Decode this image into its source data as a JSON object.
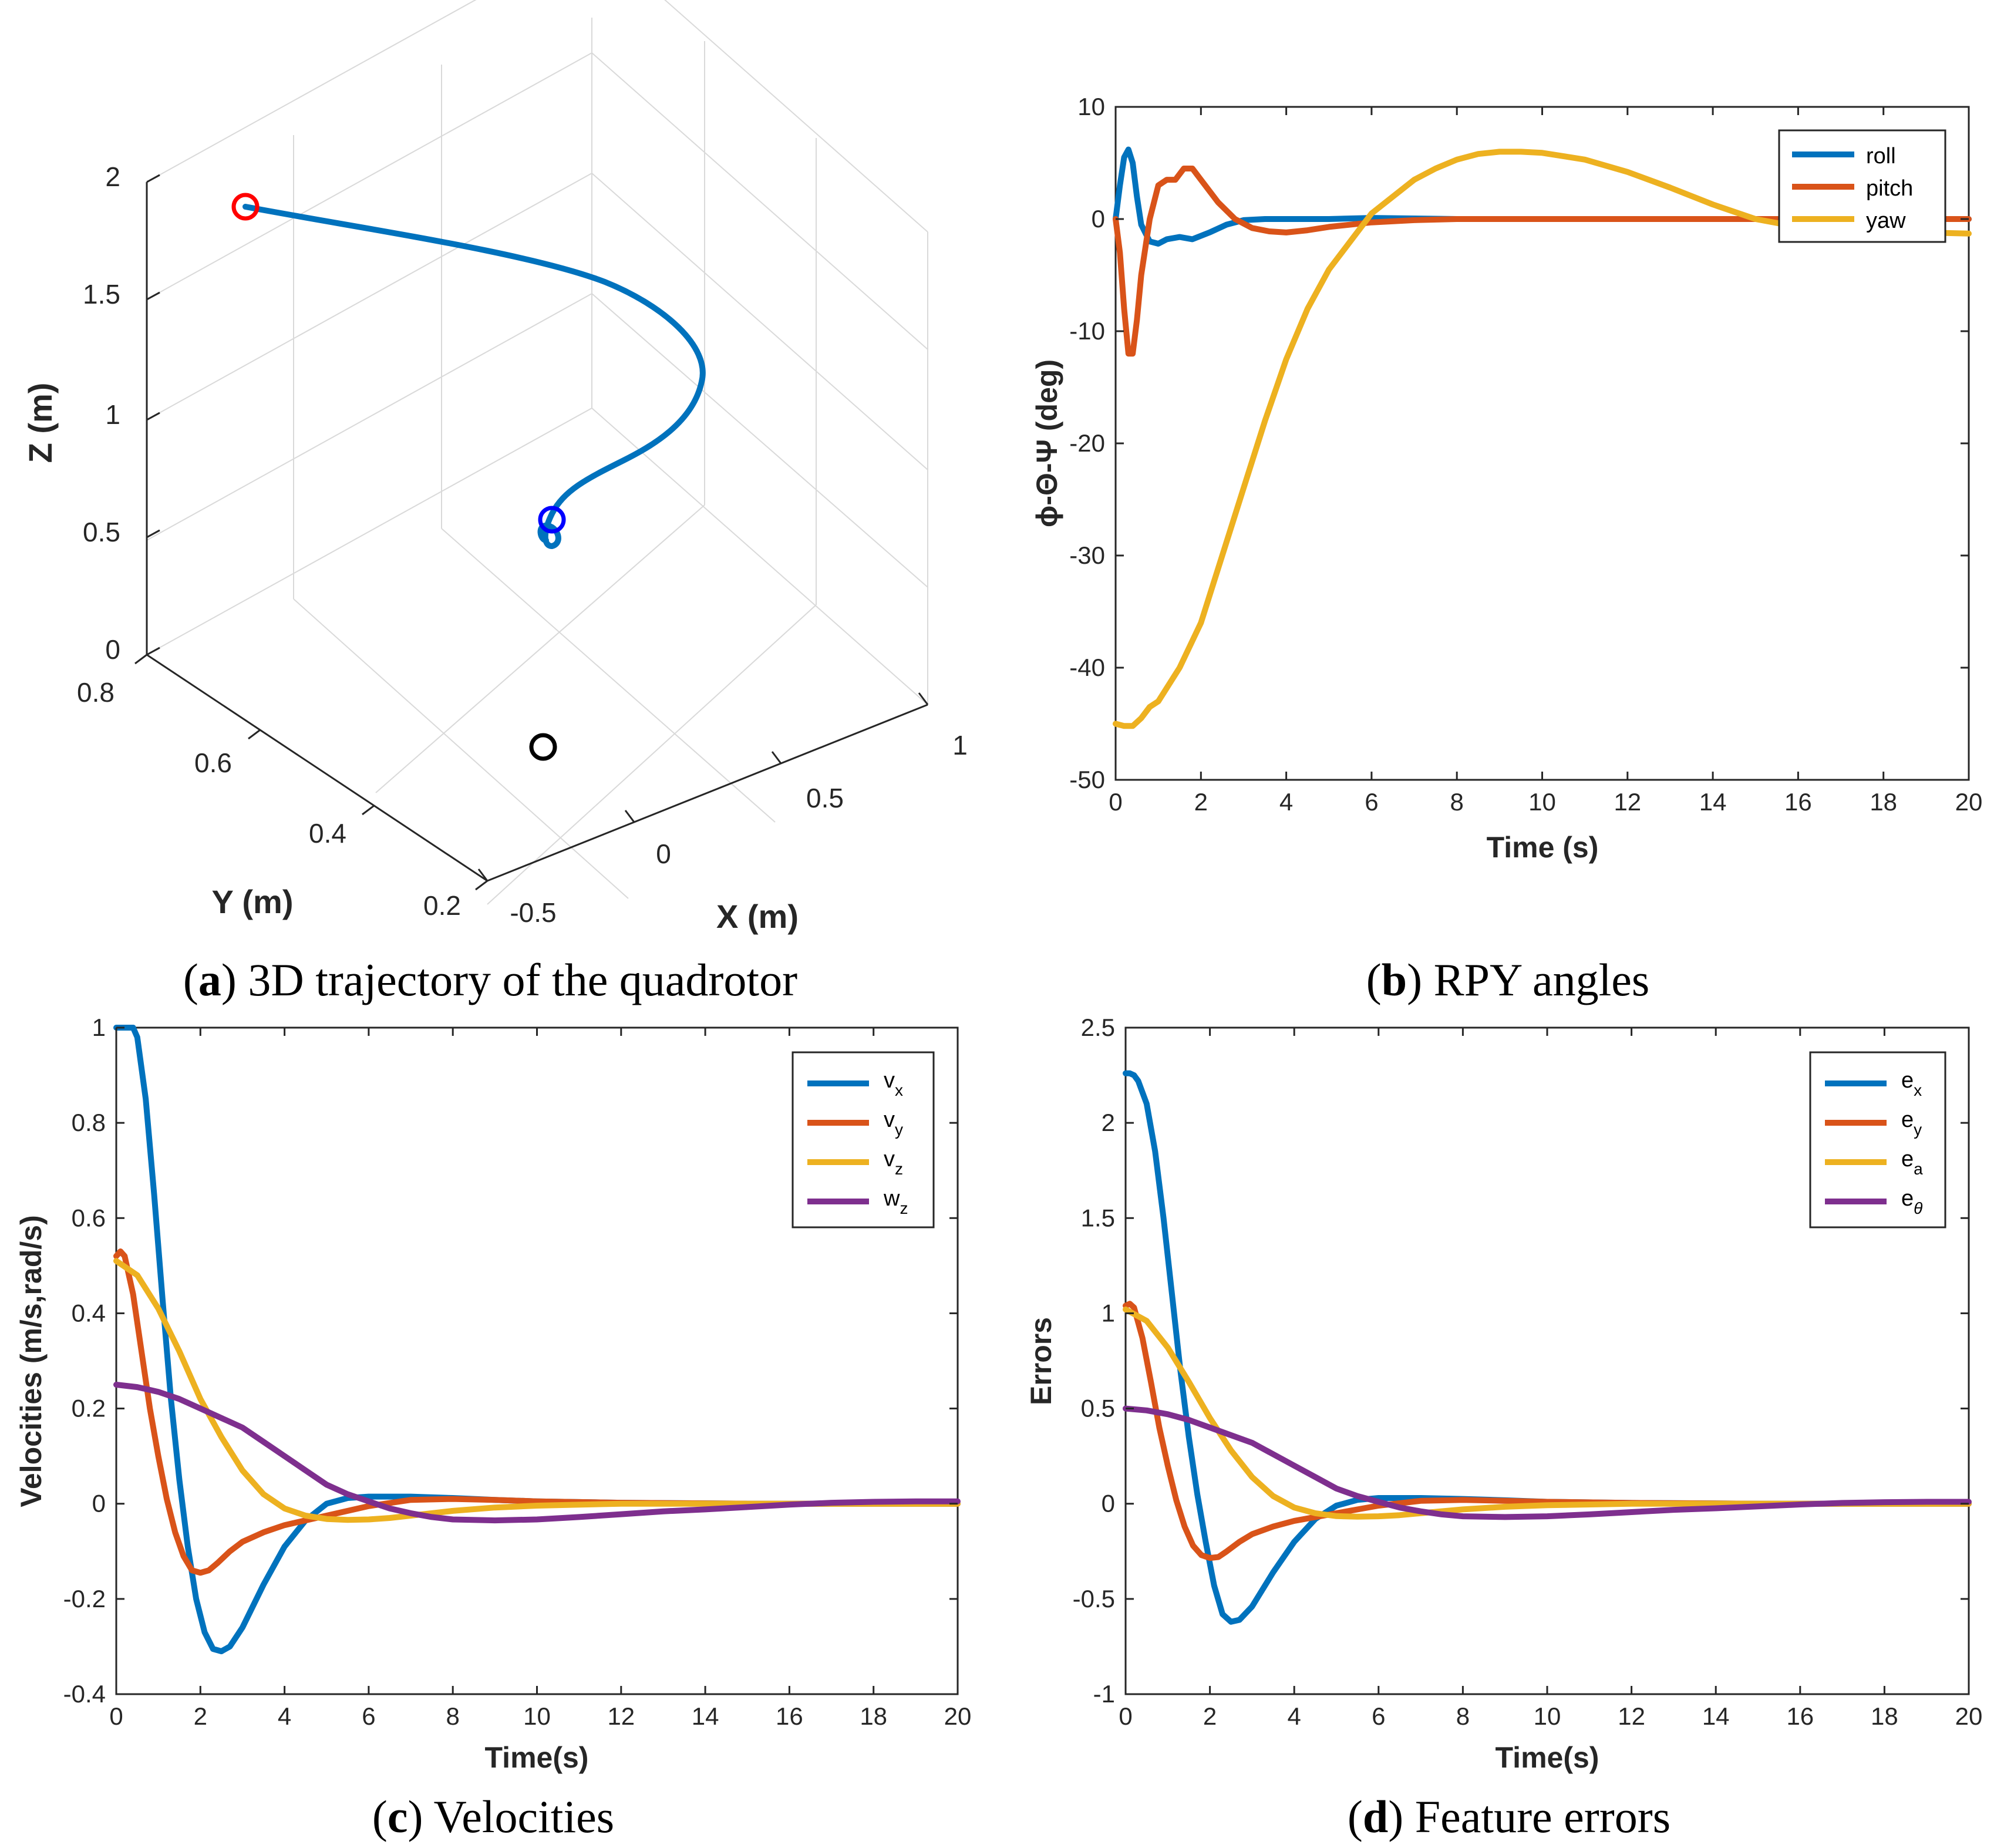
{
  "figure": {
    "captions": [
      {
        "letter": "a",
        "text": " 3D trajectory of the quadrotor"
      },
      {
        "letter": "b",
        "text": " RPY angles"
      },
      {
        "letter": "c",
        "text": " Velocities"
      },
      {
        "letter": "d",
        "text": " Feature errors"
      }
    ]
  },
  "chart_data": [
    {
      "id": "a",
      "type": "line3d",
      "title": "",
      "xlabel": "X (m)",
      "ylabel": "Y (m)",
      "zlabel": "Z (m)",
      "xlim": [
        -0.5,
        1
      ],
      "ylim": [
        0.2,
        0.8
      ],
      "zlim": [
        0,
        2
      ],
      "x_ticks": [
        "-0.5",
        "0",
        "0.5",
        "1"
      ],
      "y_ticks": [
        "0.2",
        "0.4",
        "0.6",
        "0.8"
      ],
      "z_ticks": [
        "0",
        "0.5",
        "1",
        "1.5",
        "2"
      ],
      "grid": true,
      "color": "#0072BD",
      "markers": [
        {
          "name": "start",
          "color": "#FF0000"
        },
        {
          "name": "end",
          "color": "#0000FF"
        },
        {
          "name": "ground-projection",
          "color": "#000000"
        }
      ]
    },
    {
      "id": "b",
      "type": "line",
      "title": "",
      "xlabel": "Time (s)",
      "ylabel": "ϕ-Θ-Ψ (deg)",
      "xlim": [
        0,
        20
      ],
      "ylim": [
        -50,
        10
      ],
      "x_ticks": [
        "0",
        "2",
        "4",
        "6",
        "8",
        "10",
        "12",
        "14",
        "16",
        "18",
        "20"
      ],
      "y_ticks": [
        "10",
        "0",
        "-10",
        "-20",
        "-30",
        "-40",
        "-50"
      ],
      "legend": "top-right",
      "series": [
        {
          "name": "roll",
          "color": "#0072BD",
          "x": [
            0,
            0.1,
            0.2,
            0.3,
            0.4,
            0.5,
            0.6,
            0.8,
            1.0,
            1.2,
            1.5,
            1.8,
            2.2,
            2.6,
            3.0,
            3.5,
            4,
            5,
            6,
            8,
            10,
            15,
            20
          ],
          "y": [
            0,
            3,
            5.5,
            6.2,
            5,
            2,
            -0.5,
            -2,
            -2.2,
            -1.8,
            -1.6,
            -1.8,
            -1.2,
            -0.5,
            -0.1,
            0,
            0,
            0,
            0.1,
            0,
            0,
            0,
            0
          ]
        },
        {
          "name": "pitch",
          "color": "#D95319",
          "x": [
            0,
            0.1,
            0.2,
            0.3,
            0.4,
            0.5,
            0.6,
            0.8,
            1.0,
            1.2,
            1.4,
            1.6,
            1.8,
            2.0,
            2.4,
            2.8,
            3.2,
            3.6,
            4.0,
            4.5,
            5,
            6,
            7,
            8,
            10,
            15,
            20
          ],
          "y": [
            0,
            -3,
            -8,
            -12,
            -12,
            -9,
            -5,
            0,
            3,
            3.5,
            3.5,
            4.5,
            4.5,
            3.5,
            1.5,
            0,
            -0.8,
            -1.1,
            -1.2,
            -1,
            -0.7,
            -0.3,
            -0.1,
            0,
            0,
            0,
            0
          ]
        },
        {
          "name": "yaw",
          "color": "#EDB120",
          "x": [
            0,
            0.2,
            0.4,
            0.6,
            0.8,
            1.0,
            1.5,
            2.0,
            2.5,
            3,
            3.5,
            4,
            4.5,
            5,
            5.5,
            6,
            6.5,
            7,
            7.5,
            8,
            8.5,
            9,
            9.5,
            10,
            11,
            12,
            13,
            14,
            15,
            16,
            17,
            18,
            19,
            20
          ],
          "y": [
            -45,
            -45.2,
            -45.2,
            -44.5,
            -43.5,
            -43,
            -40,
            -36,
            -30,
            -24,
            -18,
            -12.5,
            -8,
            -4.5,
            -2,
            0.5,
            2,
            3.5,
            4.5,
            5.3,
            5.8,
            6,
            6,
            5.9,
            5.3,
            4.2,
            2.8,
            1.3,
            0,
            -0.7,
            -1,
            -1.1,
            -1.2,
            -1.3
          ]
        }
      ]
    },
    {
      "id": "c",
      "type": "line",
      "title": "",
      "xlabel": "Time(s)",
      "ylabel": "Velocities (m/s,rad/s)",
      "xlim": [
        0,
        20
      ],
      "ylim": [
        -0.4,
        1
      ],
      "x_ticks": [
        "0",
        "2",
        "4",
        "6",
        "8",
        "10",
        "12",
        "14",
        "16",
        "18",
        "20"
      ],
      "y_ticks": [
        "1",
        "0.8",
        "0.6",
        "0.4",
        "0.2",
        "0",
        "-0.2",
        "-0.4"
      ],
      "legend": "top-right",
      "series": [
        {
          "name": "v",
          "sub": "x",
          "color": "#0072BD",
          "x": [
            0,
            0.4,
            0.5,
            0.7,
            0.9,
            1.1,
            1.3,
            1.5,
            1.7,
            1.9,
            2.1,
            2.3,
            2.5,
            2.7,
            3.0,
            3.5,
            4.0,
            4.5,
            5.0,
            5.5,
            6,
            7,
            8,
            9,
            10,
            12,
            15,
            20
          ],
          "y": [
            1,
            1,
            0.98,
            0.85,
            0.65,
            0.43,
            0.22,
            0.05,
            -0.09,
            -0.2,
            -0.27,
            -0.305,
            -0.31,
            -0.3,
            -0.26,
            -0.17,
            -0.09,
            -0.035,
            0,
            0.012,
            0.015,
            0.015,
            0.012,
            0.008,
            0.005,
            0.002,
            0,
            0
          ]
        },
        {
          "name": "v",
          "sub": "y",
          "color": "#D95319",
          "x": [
            0,
            0.1,
            0.2,
            0.4,
            0.6,
            0.8,
            1.0,
            1.2,
            1.4,
            1.6,
            1.8,
            2.0,
            2.2,
            2.4,
            2.7,
            3.0,
            3.5,
            4.0,
            4.5,
            5.0,
            6,
            7,
            8,
            9,
            10,
            12,
            15,
            20
          ],
          "y": [
            0.52,
            0.53,
            0.52,
            0.44,
            0.32,
            0.2,
            0.1,
            0.01,
            -0.06,
            -0.11,
            -0.14,
            -0.145,
            -0.14,
            -0.125,
            -0.1,
            -0.08,
            -0.06,
            -0.045,
            -0.035,
            -0.025,
            -0.005,
            0.008,
            0.01,
            0.008,
            0.005,
            0.002,
            0,
            0
          ]
        },
        {
          "name": "v",
          "sub": "z",
          "color": "#EDB120",
          "x": [
            0,
            0.5,
            1,
            1.5,
            2,
            2.5,
            3,
            3.5,
            4,
            4.5,
            5,
            5.5,
            6,
            6.5,
            7,
            8,
            9,
            10,
            12,
            15,
            20
          ],
          "y": [
            0.51,
            0.48,
            0.41,
            0.32,
            0.22,
            0.14,
            0.07,
            0.02,
            -0.01,
            -0.025,
            -0.032,
            -0.034,
            -0.033,
            -0.03,
            -0.025,
            -0.015,
            -0.008,
            -0.004,
            0,
            0,
            0
          ]
        },
        {
          "name": "w",
          "sub": "z",
          "color": "#7E2F8E",
          "x": [
            0,
            0.5,
            1,
            1.5,
            2,
            2.5,
            3,
            3.5,
            4,
            4.5,
            5,
            5.5,
            6,
            6.5,
            7,
            7.5,
            8,
            9,
            10,
            11,
            12,
            13,
            14,
            15,
            16,
            17,
            18,
            19,
            20
          ],
          "y": [
            0.25,
            0.245,
            0.235,
            0.22,
            0.2,
            0.18,
            0.16,
            0.13,
            0.1,
            0.07,
            0.04,
            0.02,
            0.005,
            -0.01,
            -0.02,
            -0.028,
            -0.033,
            -0.035,
            -0.033,
            -0.028,
            -0.022,
            -0.016,
            -0.012,
            -0.007,
            -0.002,
            0.002,
            0.004,
            0.005,
            0.005
          ]
        }
      ]
    },
    {
      "id": "d",
      "type": "line",
      "title": "",
      "xlabel": "Time(s)",
      "ylabel": "Errors",
      "xlim": [
        0,
        20
      ],
      "ylim": [
        -1,
        2.5
      ],
      "x_ticks": [
        "0",
        "2",
        "4",
        "6",
        "8",
        "10",
        "12",
        "14",
        "16",
        "18",
        "20"
      ],
      "y_ticks": [
        "2.5",
        "2",
        "1.5",
        "1",
        "0.5",
        "0",
        "-0.5",
        "-1"
      ],
      "legend": "top-right",
      "series": [
        {
          "name": "e",
          "sub": "x",
          "color": "#0072BD",
          "x": [
            0,
            0.1,
            0.2,
            0.3,
            0.5,
            0.7,
            0.9,
            1.1,
            1.3,
            1.5,
            1.7,
            1.9,
            2.1,
            2.3,
            2.5,
            2.7,
            3.0,
            3.5,
            4.0,
            4.5,
            5.0,
            5.5,
            6,
            7,
            8,
            9,
            10,
            12,
            15,
            20
          ],
          "y": [
            2.26,
            2.26,
            2.25,
            2.22,
            2.1,
            1.85,
            1.5,
            1.1,
            0.7,
            0.35,
            0.05,
            -0.2,
            -0.43,
            -0.58,
            -0.62,
            -0.61,
            -0.54,
            -0.36,
            -0.2,
            -0.08,
            -0.01,
            0.02,
            0.03,
            0.03,
            0.025,
            0.018,
            0.01,
            0.004,
            0,
            0
          ]
        },
        {
          "name": "e",
          "sub": "y",
          "color": "#D95319",
          "x": [
            0,
            0.1,
            0.2,
            0.4,
            0.6,
            0.8,
            1.0,
            1.2,
            1.4,
            1.6,
            1.8,
            2.0,
            2.2,
            2.4,
            2.7,
            3.0,
            3.5,
            4.0,
            4.5,
            5.0,
            6,
            7,
            8,
            9,
            10,
            12,
            15,
            20
          ],
          "y": [
            1.04,
            1.05,
            1.03,
            0.87,
            0.64,
            0.4,
            0.2,
            0.02,
            -0.12,
            -0.22,
            -0.27,
            -0.285,
            -0.28,
            -0.25,
            -0.2,
            -0.16,
            -0.12,
            -0.09,
            -0.07,
            -0.05,
            -0.01,
            0.015,
            0.02,
            0.015,
            0.01,
            0.004,
            0,
            0
          ]
        },
        {
          "name": "e",
          "sub": "a",
          "color": "#EDB120",
          "x": [
            0,
            0.5,
            1,
            1.5,
            2,
            2.5,
            3,
            3.5,
            4,
            4.5,
            5,
            5.5,
            6,
            6.5,
            7,
            8,
            9,
            10,
            12,
            15,
            20
          ],
          "y": [
            1.02,
            0.96,
            0.82,
            0.64,
            0.45,
            0.28,
            0.14,
            0.04,
            -0.02,
            -0.05,
            -0.065,
            -0.068,
            -0.066,
            -0.06,
            -0.05,
            -0.03,
            -0.016,
            -0.008,
            0,
            0,
            0
          ]
        },
        {
          "name": "e",
          "sub": "θ",
          "color": "#7E2F8E",
          "x": [
            0,
            0.5,
            1,
            1.5,
            2,
            2.5,
            3,
            3.5,
            4,
            4.5,
            5,
            5.5,
            6,
            6.5,
            7,
            7.5,
            8,
            9,
            10,
            11,
            12,
            13,
            14,
            15,
            16,
            17,
            18,
            19,
            20
          ],
          "y": [
            0.5,
            0.49,
            0.47,
            0.44,
            0.4,
            0.36,
            0.32,
            0.26,
            0.2,
            0.14,
            0.08,
            0.04,
            0.01,
            -0.02,
            -0.04,
            -0.056,
            -0.066,
            -0.07,
            -0.066,
            -0.056,
            -0.044,
            -0.032,
            -0.024,
            -0.014,
            -0.004,
            0.004,
            0.008,
            0.01,
            0.01
          ]
        }
      ]
    }
  ]
}
